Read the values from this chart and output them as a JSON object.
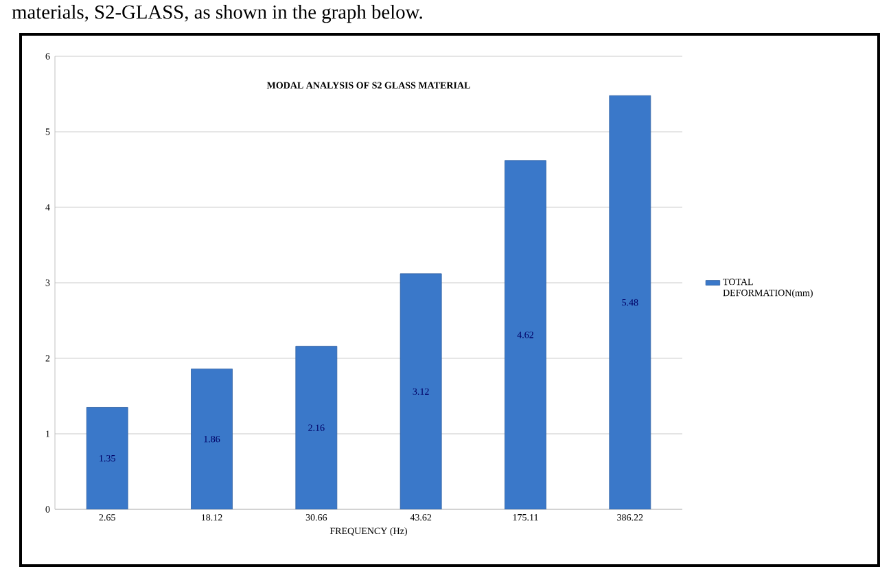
{
  "chart_data": {
    "type": "bar",
    "title": "MODAL ANALYSIS OF S2 GLASS MATERIAL",
    "xlabel": "FREQUENCY (Hz)",
    "categories": [
      "2.65",
      "18.12",
      "30.66",
      "43.62",
      "175.11",
      "386.22"
    ],
    "series": [
      {
        "name": "TOTAL DEFORMATION(mm)",
        "color": "#3a78c9",
        "values": [
          1.35,
          1.86,
          2.16,
          3.12,
          4.62,
          5.48
        ]
      }
    ],
    "ylim": [
      0,
      6
    ],
    "yticks": [
      0,
      1,
      2,
      3,
      4,
      5,
      6
    ],
    "grid": "y",
    "legend": "right",
    "data_labels": true,
    "annotations": [
      "materials, S2-GLASS, as shown in the graph below."
    ]
  }
}
